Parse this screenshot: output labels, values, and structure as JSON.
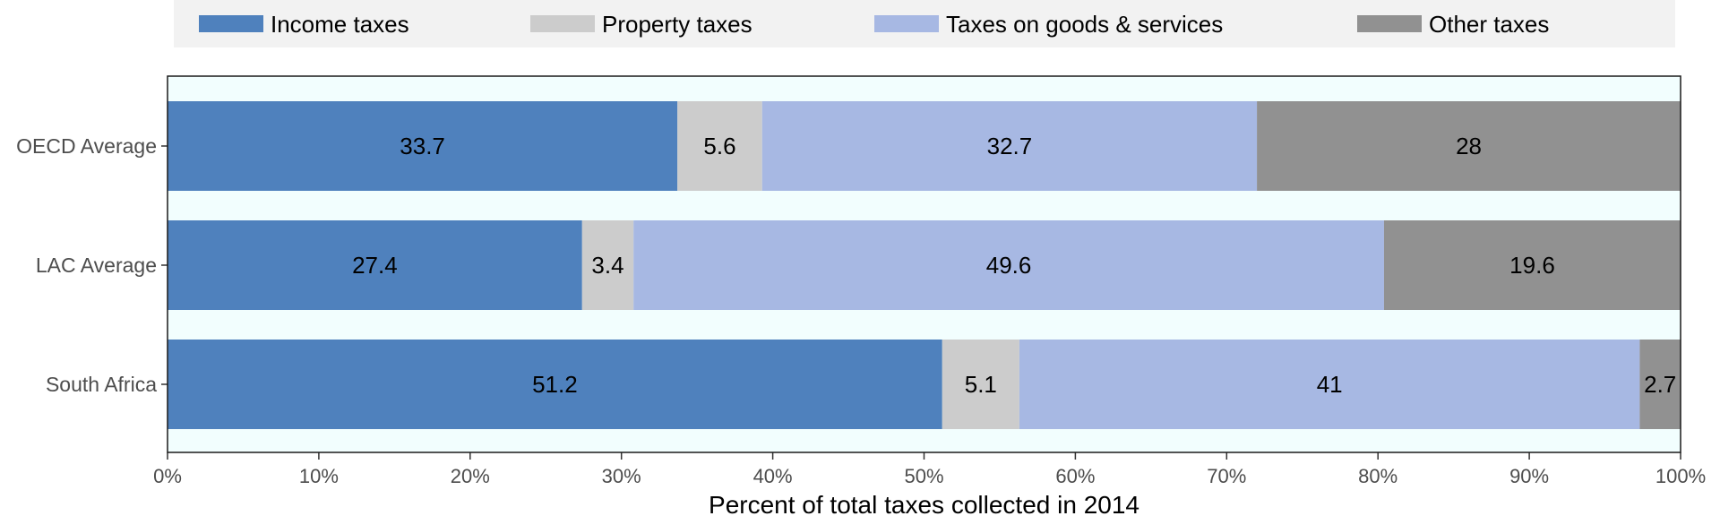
{
  "chart_data": {
    "type": "bar",
    "orientation": "horizontal",
    "stacked": true,
    "categories": [
      "OECD Average",
      "LAC Average",
      "South Africa"
    ],
    "series": [
      {
        "name": "Income taxes",
        "color": "#4f81bd",
        "values": [
          33.7,
          27.4,
          51.2
        ]
      },
      {
        "name": "Property taxes",
        "color": "#cccccc",
        "values": [
          5.6,
          3.4,
          5.1
        ]
      },
      {
        "name": "Taxes on goods & services",
        "color": "#a7b8e3",
        "values": [
          32.7,
          49.6,
          41
        ]
      },
      {
        "name": "Other taxes",
        "color": "#919191",
        "values": [
          28,
          19.6,
          2.7
        ]
      }
    ],
    "value_labels": [
      [
        "33.7",
        "27.4",
        "51.2"
      ],
      [
        "5.6",
        "3.4",
        "5.1"
      ],
      [
        "32.7",
        "49.6",
        "41"
      ],
      [
        "28",
        "19.6",
        "2.7"
      ]
    ],
    "xlabel": "Percent of total taxes collected in 2014",
    "ylabel": "",
    "xlim": [
      0,
      100
    ],
    "x_ticks": [
      0,
      10,
      20,
      30,
      40,
      50,
      60,
      70,
      80,
      90,
      100
    ],
    "x_tick_labels": [
      "0%",
      "10%",
      "20%",
      "30%",
      "40%",
      "50%",
      "60%",
      "70%",
      "80%",
      "90%",
      "100%"
    ],
    "legend_position": "top",
    "grid": false,
    "panel_background": "#f2fefe",
    "legend_background": "#f2f2f2"
  }
}
